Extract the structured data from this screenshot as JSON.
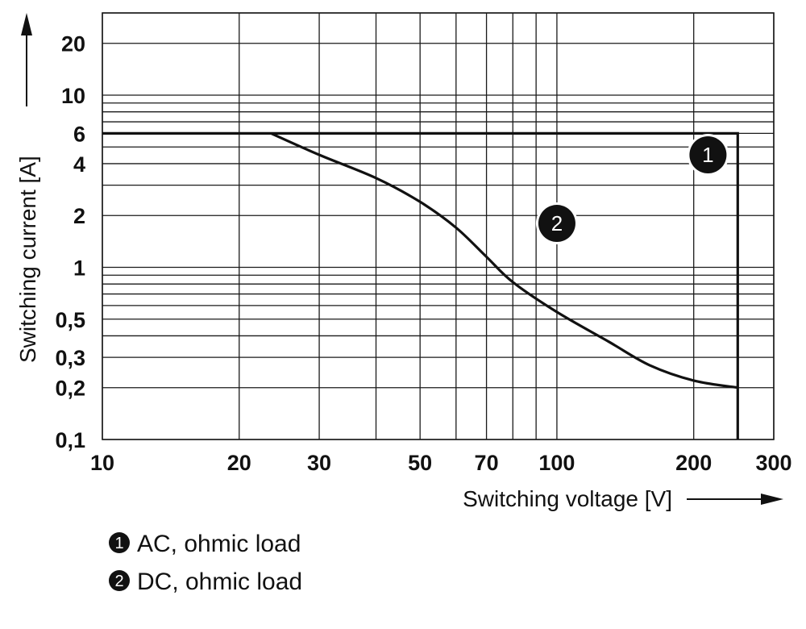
{
  "chart_data": {
    "type": "line",
    "x_scale": "log",
    "y_scale": "log",
    "xlim": [
      10,
      300
    ],
    "ylim": [
      0.1,
      30
    ],
    "xlabel": "Switching voltage [V]",
    "ylabel": "Switching current [A]",
    "x_ticks": [
      {
        "value": 10,
        "label": "10"
      },
      {
        "value": 20,
        "label": "20"
      },
      {
        "value": 30,
        "label": "30"
      },
      {
        "value": 50,
        "label": "50"
      },
      {
        "value": 70,
        "label": "70"
      },
      {
        "value": 100,
        "label": "100"
      },
      {
        "value": 200,
        "label": "200"
      },
      {
        "value": 300,
        "label": "300"
      }
    ],
    "y_ticks": [
      {
        "value": 20,
        "label": "20"
      },
      {
        "value": 10,
        "label": "10"
      },
      {
        "value": 6,
        "label": "6"
      },
      {
        "value": 4,
        "label": "4"
      },
      {
        "value": 2,
        "label": "2"
      },
      {
        "value": 1,
        "label": "1"
      },
      {
        "value": 0.5,
        "label": "0,5"
      },
      {
        "value": 0.3,
        "label": "0,3"
      },
      {
        "value": 0.2,
        "label": "0,2"
      },
      {
        "value": 0.1,
        "label": "0,1"
      }
    ],
    "grid_x": [
      10,
      20,
      30,
      40,
      50,
      60,
      70,
      80,
      90,
      100,
      200,
      300
    ],
    "grid_y": [
      0.1,
      0.2,
      0.3,
      0.4,
      0.5,
      0.6,
      0.7,
      0.8,
      0.9,
      1,
      2,
      3,
      4,
      5,
      6,
      7,
      8,
      9,
      10,
      20,
      30
    ],
    "grid": true,
    "series": [
      {
        "marker": "1",
        "name": "AC, ohmic load",
        "points": [
          [
            10,
            6
          ],
          [
            250,
            6
          ],
          [
            250,
            0.1
          ]
        ],
        "marker_at": [
          215,
          4.5
        ]
      },
      {
        "marker": "2",
        "name": "DC, ohmic load",
        "points": [
          [
            23.5,
            6
          ],
          [
            30,
            4.5
          ],
          [
            40,
            3.3
          ],
          [
            50,
            2.4
          ],
          [
            60,
            1.7
          ],
          [
            70,
            1.15
          ],
          [
            80,
            0.82
          ],
          [
            100,
            0.55
          ],
          [
            130,
            0.37
          ],
          [
            160,
            0.27
          ],
          [
            200,
            0.22
          ],
          [
            250,
            0.2
          ]
        ],
        "marker_at": [
          100,
          1.8
        ]
      }
    ],
    "legend": {
      "placement": "bottom-left",
      "items": [
        {
          "marker": "1",
          "label": "AC, ohmic load"
        },
        {
          "marker": "2",
          "label": "DC, ohmic load"
        }
      ]
    },
    "colors": {
      "line": "#111111",
      "grid": "#1a1a1a",
      "marker_fill": "#111111",
      "marker_text": "#ffffff"
    }
  }
}
